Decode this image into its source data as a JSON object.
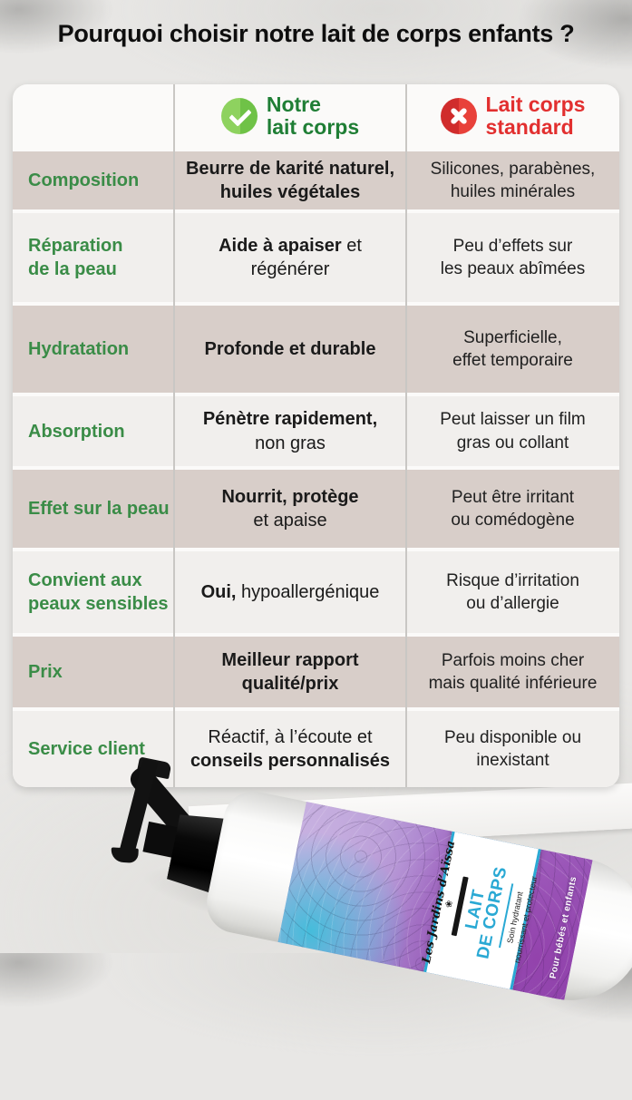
{
  "title": "Pourquoi choisir notre lait de corps enfants ?",
  "header": {
    "ours": {
      "icon": "check-icon",
      "label": "Notre\nlait corps"
    },
    "standard": {
      "icon": "x-icon",
      "label": "Lait corps\nstandard"
    }
  },
  "rows": [
    {
      "label": "Composition",
      "ours": [
        {
          "t": "Beurre de karité naturel,\nhuiles végétales",
          "b": true
        }
      ],
      "standard": "Silicones, parabènes,\nhuiles minérales"
    },
    {
      "label": "Réparation\nde la peau",
      "ours": [
        {
          "t": "Aide à apaiser",
          "b": true
        },
        {
          "t": " et\nrégénérer"
        }
      ],
      "standard": "Peu d’effets sur\nles peaux abîmées"
    },
    {
      "label": "Hydratation",
      "ours": [
        {
          "t": "Profonde et durable",
          "b": true
        }
      ],
      "standard": "Superficielle,\neffet temporaire"
    },
    {
      "label": "Absorption",
      "ours": [
        {
          "t": "Pénètre rapidement,",
          "b": true
        },
        {
          "t": "\nnon gras"
        }
      ],
      "standard": "Peut laisser un film\ngras ou collant"
    },
    {
      "label": "Effet sur la peau",
      "ours": [
        {
          "t": "Nourrit, protège",
          "b": true
        },
        {
          "t": "\net apaise"
        }
      ],
      "standard": "Peut être irritant\nou comédogène"
    },
    {
      "label": "Convient aux\npeaux sensibles",
      "ours": [
        {
          "t": "Oui,",
          "b": true
        },
        {
          "t": " hypoallergénique"
        }
      ],
      "standard": "Risque d’irritation\nou d’allergie"
    },
    {
      "label": "Prix",
      "ours": [
        {
          "t": "Meilleur rapport\nqualité/prix",
          "b": true
        }
      ],
      "standard": "Parfois moins cher\nmais qualité inférieure"
    },
    {
      "label": "Service client",
      "ours": [
        {
          "t": "Réactif, à l’écoute et\n"
        },
        {
          "t": "conseils personnalisés",
          "b": true
        }
      ],
      "standard": "Peu disponible ou\ninexistant"
    }
  ],
  "bottle": {
    "brand": "Les Jardins d’Aïssa",
    "brand_mark": "❀",
    "product_name": "LAIT\nDE CORPS",
    "subtitle": "Soin hydratant\nnourrissant et protecteur",
    "audience": "Pour bébés et enfants"
  },
  "colors": {
    "criterion_green": "#3a8c47",
    "header_green": "#1f7e35",
    "header_red": "#e22f2f",
    "check_circle_green": "#7dc94e",
    "x_circle_red": "#e03030",
    "row_taupe": "#d8cec9",
    "row_light": "#f1efed",
    "label_cyan": "#2aa9d4",
    "label_purple": "#8d4cae"
  }
}
